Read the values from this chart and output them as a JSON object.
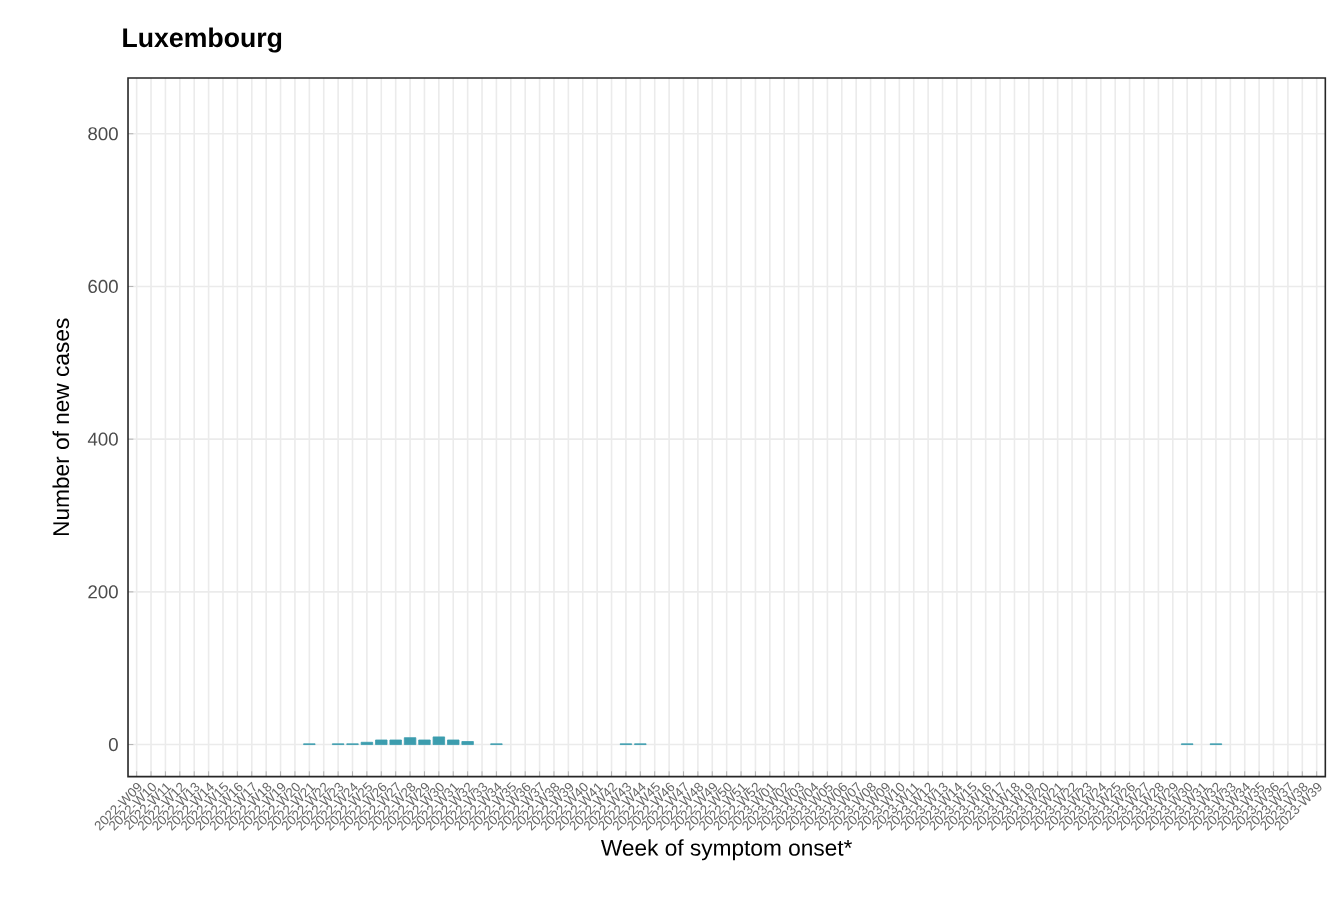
{
  "chart_data": {
    "type": "bar",
    "title": "Luxembourg",
    "xlabel": "Week of symptom onset*",
    "ylabel": "Number of new cases",
    "categories": [
      "2022-W09",
      "2022-W10",
      "2022-W11",
      "2022-W12",
      "2022-W13",
      "2022-W14",
      "2022-W15",
      "2022-W16",
      "2022-W17",
      "2022-W18",
      "2022-W19",
      "2022-W20",
      "2022-W21",
      "2022-W22",
      "2022-W23",
      "2022-W24",
      "2022-W25",
      "2022-W26",
      "2022-W27",
      "2022-W28",
      "2022-W29",
      "2022-W30",
      "2022-W31",
      "2022-W32",
      "2022-W33",
      "2022-W34",
      "2022-W35",
      "2022-W36",
      "2022-W37",
      "2022-W38",
      "2022-W39",
      "2022-W40",
      "2022-W41",
      "2022-W42",
      "2022-W43",
      "2022-W44",
      "2022-W45",
      "2022-W46",
      "2022-W47",
      "2022-W48",
      "2022-W49",
      "2022-W50",
      "2022-W51",
      "2022-W52",
      "2023-W01",
      "2023-W02",
      "2023-W03",
      "2023-W04",
      "2023-W05",
      "2023-W06",
      "2023-W07",
      "2023-W08",
      "2023-W09",
      "2023-W10",
      "2023-W11",
      "2023-W12",
      "2023-W13",
      "2023-W14",
      "2023-W15",
      "2023-W16",
      "2023-W17",
      "2023-W18",
      "2023-W19",
      "2023-W20",
      "2023-W21",
      "2023-W22",
      "2023-W23",
      "2023-W24",
      "2023-W25",
      "2023-W26",
      "2023-W27",
      "2023-W28",
      "2023-W29",
      "2023-W30",
      "2023-W31",
      "2023-W32",
      "2023-W33",
      "2023-W34",
      "2023-W35",
      "2023-W36",
      "2023-W37",
      "2023-W38",
      "2023-W39"
    ],
    "values": [
      null,
      null,
      null,
      null,
      null,
      null,
      null,
      null,
      null,
      null,
      null,
      null,
      1,
      null,
      1,
      1,
      3,
      6,
      6,
      9,
      6,
      10,
      6,
      4,
      null,
      1,
      null,
      null,
      null,
      null,
      null,
      null,
      null,
      null,
      1,
      1,
      null,
      null,
      null,
      null,
      null,
      null,
      null,
      null,
      null,
      null,
      null,
      null,
      null,
      null,
      null,
      null,
      null,
      null,
      null,
      null,
      null,
      null,
      null,
      null,
      null,
      null,
      null,
      null,
      null,
      null,
      null,
      null,
      null,
      null,
      null,
      null,
      null,
      1,
      null,
      1,
      null,
      null,
      null,
      null,
      null,
      null,
      null
    ],
    "color": "#3c9dae",
    "ylim": [
      -42,
      873
    ],
    "yticks": [
      0,
      200,
      400,
      600,
      800
    ],
    "grid": true
  }
}
